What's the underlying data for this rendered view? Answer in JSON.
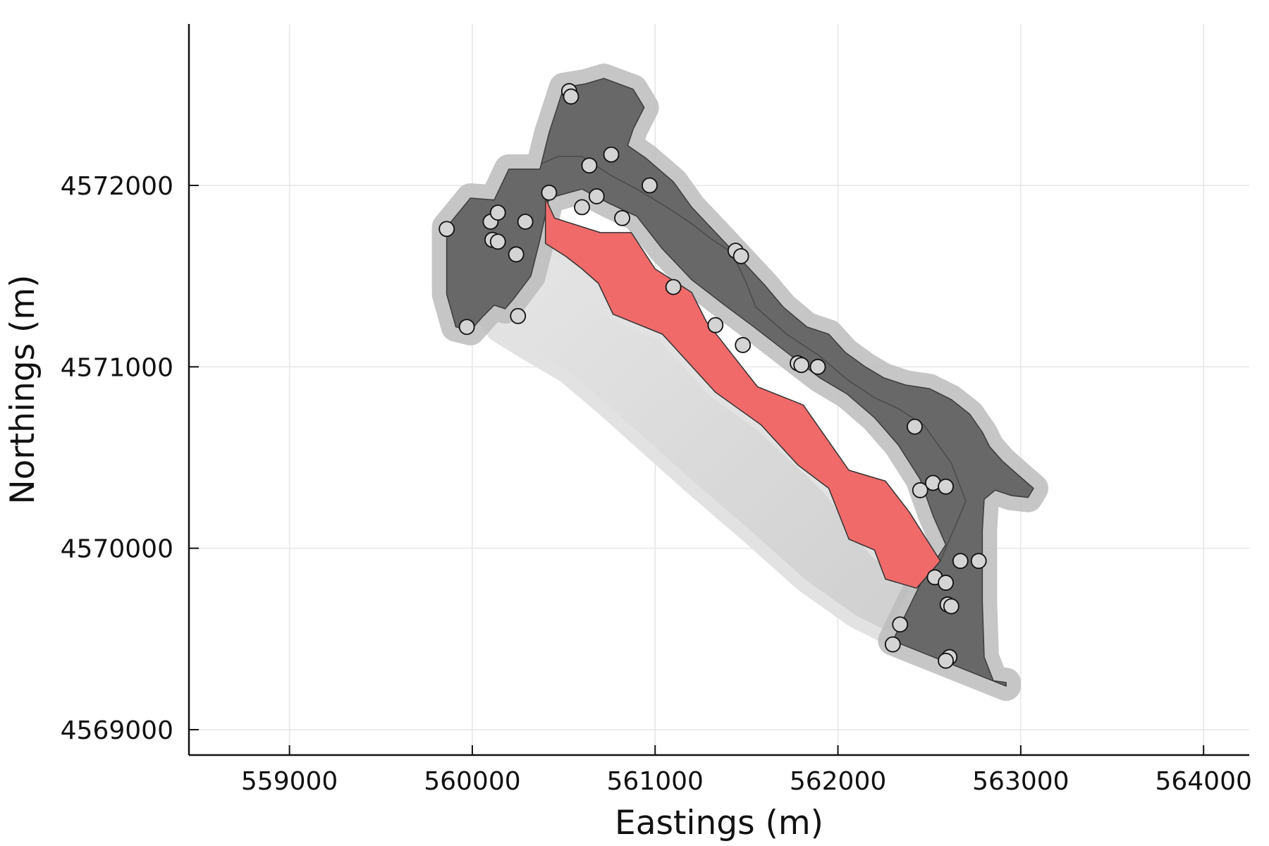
{
  "chart_data": {
    "type": "scatter",
    "title": "",
    "xlabel": "Eastings (m)",
    "ylabel": "Northings (m)",
    "xlim": [
      558450,
      564250
    ],
    "ylim": [
      4568860,
      4572890
    ],
    "xticks": [
      559000,
      560000,
      561000,
      562000,
      563000,
      564000
    ],
    "yticks": [
      4569000,
      4570000,
      4571000,
      4572000
    ],
    "grid": true,
    "legend": "none",
    "colors": {
      "halo": "#bdbdbd",
      "unit_fill": "#686868",
      "unit_edge": "#3c3c3c",
      "highlight": "#f06a6a",
      "shadow": "#d6d6d6",
      "point_fill": "#d4d4d4",
      "point_edge": "#111111",
      "grid": "#e6e6e6"
    },
    "regions": {
      "outer_unit": [
        [
          559860,
          4571770
        ],
        [
          559990,
          4571930
        ],
        [
          560120,
          4571920
        ],
        [
          560200,
          4572090
        ],
        [
          560370,
          4572090
        ],
        [
          560420,
          4572290
        ],
        [
          560500,
          4572540
        ],
        [
          560620,
          4572560
        ],
        [
          560720,
          4572590
        ],
        [
          560880,
          4572530
        ],
        [
          560940,
          4572430
        ],
        [
          560880,
          4572310
        ],
        [
          560850,
          4572220
        ],
        [
          560950,
          4572150
        ],
        [
          561100,
          4572020
        ],
        [
          561200,
          4571880
        ],
        [
          561350,
          4571720
        ],
        [
          561480,
          4571580
        ],
        [
          561600,
          4571450
        ],
        [
          561700,
          4571330
        ],
        [
          561830,
          4571220
        ],
        [
          561950,
          4571180
        ],
        [
          562040,
          4571080
        ],
        [
          562150,
          4571000
        ],
        [
          562250,
          4570940
        ],
        [
          562370,
          4570900
        ],
        [
          562500,
          4570880
        ],
        [
          562620,
          4570820
        ],
        [
          562720,
          4570740
        ],
        [
          562790,
          4570640
        ],
        [
          562830,
          4570560
        ],
        [
          562900,
          4570480
        ],
        [
          562990,
          4570400
        ],
        [
          563070,
          4570330
        ],
        [
          563040,
          4570280
        ],
        [
          562950,
          4570290
        ],
        [
          562860,
          4570320
        ],
        [
          562800,
          4570270
        ],
        [
          562790,
          4570100
        ],
        [
          562790,
          4569700
        ],
        [
          562800,
          4569400
        ],
        [
          562850,
          4569270
        ],
        [
          562920,
          4569260
        ],
        [
          562920,
          4569240
        ],
        [
          562300,
          4569490
        ],
        [
          562450,
          4569800
        ],
        [
          562590,
          4570020
        ],
        [
          562520,
          4570180
        ],
        [
          562450,
          4570380
        ],
        [
          562330,
          4570570
        ],
        [
          562200,
          4570720
        ],
        [
          562050,
          4570850
        ],
        [
          561900,
          4570940
        ],
        [
          561720,
          4571080
        ],
        [
          561540,
          4571220
        ],
        [
          561380,
          4571340
        ],
        [
          561200,
          4571480
        ],
        [
          561040,
          4571650
        ],
        [
          560900,
          4571830
        ],
        [
          560750,
          4571900
        ],
        [
          560600,
          4571980
        ],
        [
          560420,
          4571930
        ],
        [
          560370,
          4571700
        ],
        [
          560320,
          4571500
        ],
        [
          560230,
          4571380
        ],
        [
          560180,
          4571320
        ],
        [
          560120,
          4571340
        ],
        [
          560060,
          4571280
        ],
        [
          559990,
          4571200
        ],
        [
          559910,
          4571220
        ],
        [
          559860,
          4571400
        ]
      ],
      "red_band": [
        [
          560400,
          4571930
        ],
        [
          560450,
          4571820
        ],
        [
          560700,
          4571740
        ],
        [
          560870,
          4571740
        ],
        [
          561000,
          4571540
        ],
        [
          561200,
          4571410
        ],
        [
          561280,
          4571250
        ],
        [
          561560,
          4570890
        ],
        [
          561810,
          4570790
        ],
        [
          562060,
          4570430
        ],
        [
          562260,
          4570370
        ],
        [
          562390,
          4570200
        ],
        [
          562560,
          4569930
        ],
        [
          562430,
          4569780
        ],
        [
          562260,
          4569830
        ],
        [
          562200,
          4569990
        ],
        [
          562060,
          4570050
        ],
        [
          561950,
          4570330
        ],
        [
          561780,
          4570460
        ],
        [
          561580,
          4570680
        ],
        [
          561330,
          4570860
        ],
        [
          561040,
          4571180
        ],
        [
          560770,
          4571290
        ],
        [
          560690,
          4571460
        ],
        [
          560600,
          4571540
        ],
        [
          560510,
          4571610
        ],
        [
          560400,
          4571680
        ]
      ],
      "shadow": [
        [
          560400,
          4571680
        ],
        [
          560600,
          4571540
        ],
        [
          560770,
          4571290
        ],
        [
          561040,
          4571180
        ],
        [
          561330,
          4570860
        ],
        [
          561580,
          4570680
        ],
        [
          561950,
          4570330
        ],
        [
          562200,
          4569990
        ],
        [
          562430,
          4569780
        ],
        [
          562300,
          4569490
        ],
        [
          562080,
          4569600
        ],
        [
          561800,
          4569800
        ],
        [
          561500,
          4570070
        ],
        [
          561200,
          4570330
        ],
        [
          560900,
          4570600
        ],
        [
          560700,
          4570780
        ],
        [
          560500,
          4570950
        ],
        [
          560280,
          4571080
        ],
        [
          560120,
          4571180
        ],
        [
          560030,
          4571300
        ],
        [
          560180,
          4571320
        ],
        [
          560320,
          4571500
        ]
      ],
      "internal_lines": [
        [
          [
            560380,
            4572120
          ],
          [
            560470,
            4572160
          ],
          [
            560600,
            4572160
          ],
          [
            560750,
            4572060
          ],
          [
            560900,
            4571980
          ],
          [
            561080,
            4571870
          ],
          [
            561200,
            4571790
          ],
          [
            561300,
            4571710
          ],
          [
            561420,
            4571630
          ],
          [
            561500,
            4571460
          ],
          [
            561550,
            4571330
          ],
          [
            561720,
            4571180
          ],
          [
            561900,
            4571060
          ],
          [
            562050,
            4570930
          ],
          [
            562200,
            4570830
          ],
          [
            562330,
            4570770
          ],
          [
            562470,
            4570680
          ],
          [
            562620,
            4570470
          ],
          [
            562700,
            4570260
          ],
          [
            562560,
            4569930
          ]
        ]
      ]
    },
    "points": [
      [
        559860,
        4571760
      ],
      [
        559970,
        4571220
      ],
      [
        560100,
        4571800
      ],
      [
        560110,
        4571700
      ],
      [
        560140,
        4571850
      ],
      [
        560140,
        4571690
      ],
      [
        560240,
        4571620
      ],
      [
        560250,
        4571280
      ],
      [
        560290,
        4571800
      ],
      [
        560420,
        4571960
      ],
      [
        560530,
        4572520
      ],
      [
        560540,
        4572490
      ],
      [
        560600,
        4571880
      ],
      [
        560640,
        4572110
      ],
      [
        560680,
        4571940
      ],
      [
        560760,
        4572170
      ],
      [
        560820,
        4571820
      ],
      [
        560970,
        4572000
      ],
      [
        561100,
        4571440
      ],
      [
        561330,
        4571230
      ],
      [
        561440,
        4571640
      ],
      [
        561470,
        4571610
      ],
      [
        561480,
        4571120
      ],
      [
        561780,
        4571020
      ],
      [
        561800,
        4571010
      ],
      [
        561890,
        4571000
      ],
      [
        562420,
        4570670
      ],
      [
        562450,
        4570320
      ],
      [
        562520,
        4570360
      ],
      [
        562590,
        4570340
      ],
      [
        562530,
        4569840
      ],
      [
        562590,
        4569810
      ],
      [
        562670,
        4569930
      ],
      [
        562770,
        4569930
      ],
      [
        562600,
        4569690
      ],
      [
        562620,
        4569680
      ],
      [
        562610,
        4569400
      ],
      [
        562590,
        4569380
      ],
      [
        562340,
        4569580
      ],
      [
        562300,
        4569470
      ]
    ]
  }
}
